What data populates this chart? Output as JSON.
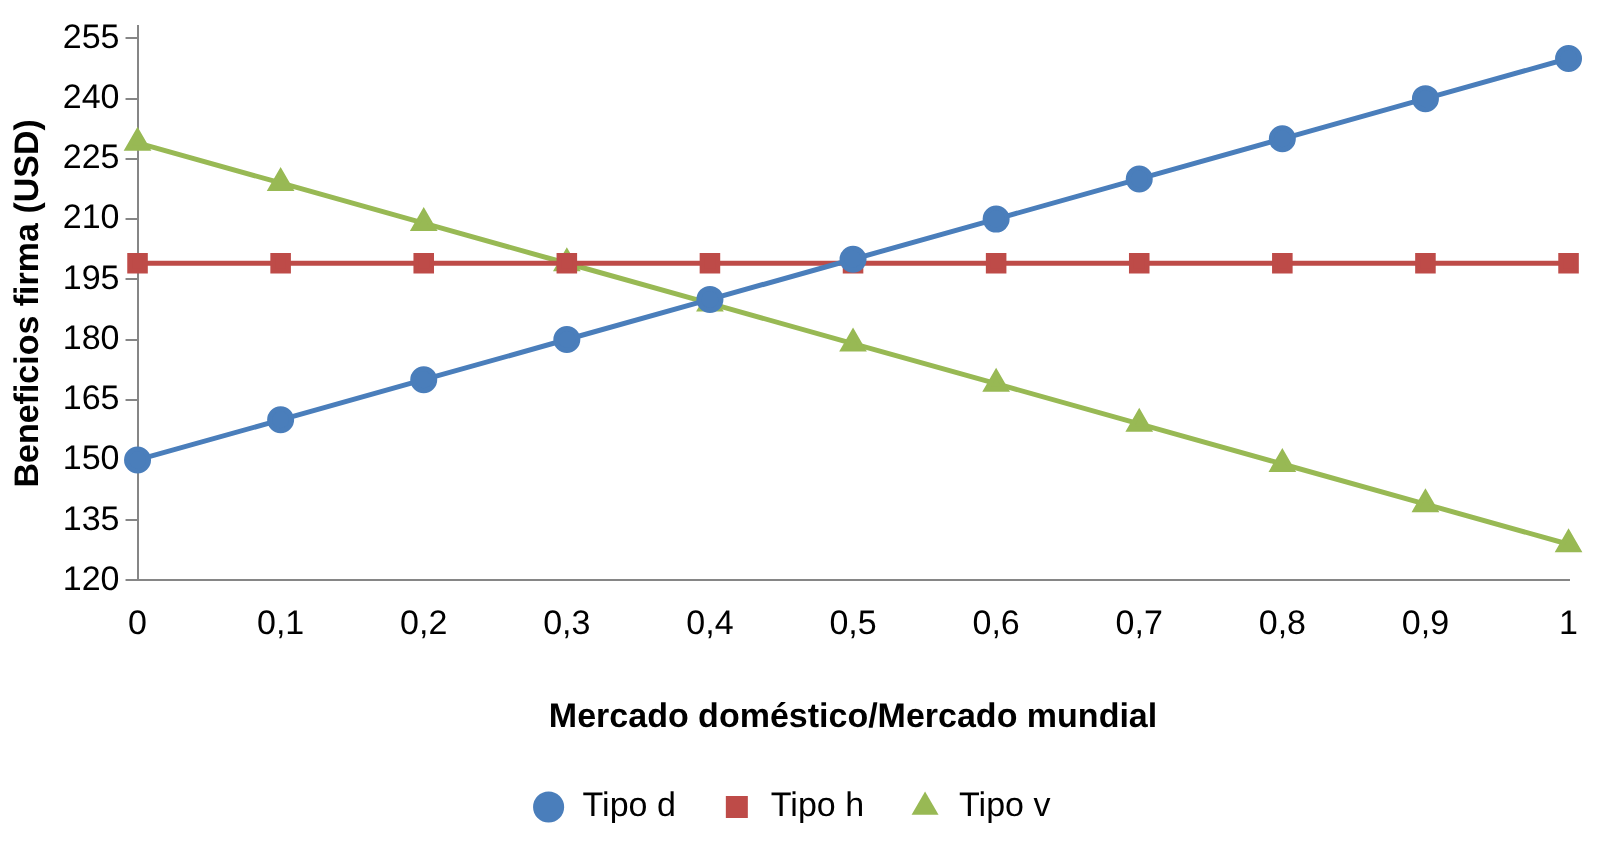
{
  "chart_data": {
    "type": "line",
    "xlabel": "Mercado doméstico/Mercado mundial",
    "ylabel": "Beneficios firma (USD)",
    "categories": [
      "0",
      "0,1",
      "0,2",
      "0,3",
      "0,4",
      "0,5",
      "0,6",
      "0,7",
      "0,8",
      "0,9",
      "1"
    ],
    "series": [
      {
        "name": "Tipo d",
        "color": "#4a7ebb",
        "marker": "circle",
        "values": [
          150,
          160,
          170,
          180,
          190,
          200,
          210,
          220,
          230,
          240,
          250
        ]
      },
      {
        "name": "Tipo h",
        "color": "#be4b48",
        "marker": "square",
        "values": [
          199,
          199,
          199,
          199,
          199,
          199,
          199,
          199,
          199,
          199,
          199
        ]
      },
      {
        "name": "Tipo v",
        "color": "#98b954",
        "marker": "triangle",
        "values": [
          229,
          219,
          209,
          199,
          189,
          179,
          169,
          159,
          149,
          139,
          129
        ]
      }
    ],
    "ylim": [
      120,
      258
    ],
    "yticks": [
      120,
      135,
      150,
      165,
      180,
      195,
      210,
      225,
      240,
      255
    ],
    "grid": false,
    "legend": "bottom"
  }
}
